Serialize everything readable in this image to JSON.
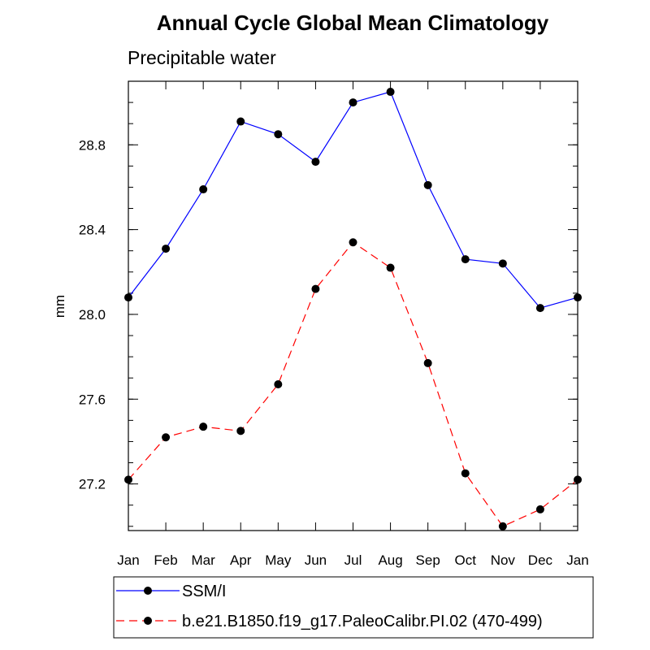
{
  "chart_data": {
    "type": "line",
    "title": "Annual Cycle Global Mean Climatology",
    "subtitle": "Precipitable water",
    "ylabel": "mm",
    "xlabel": "",
    "categories": [
      "Jan",
      "Feb",
      "Mar",
      "Apr",
      "May",
      "Jun",
      "Jul",
      "Aug",
      "Sep",
      "Oct",
      "Nov",
      "Dec",
      "Jan"
    ],
    "ylim": [
      26.98,
      29.1
    ],
    "yticks_major": [
      "27.2",
      "27.6",
      "28.0",
      "28.4",
      "28.8"
    ],
    "series": [
      {
        "name": "SSM/I",
        "color": "#0000ff",
        "dash": "solid",
        "values": [
          28.08,
          28.31,
          28.59,
          28.91,
          28.85,
          28.72,
          29.0,
          29.05,
          28.61,
          28.26,
          28.24,
          28.03,
          28.08
        ]
      },
      {
        "name": "b.e21.B1850.f19_g17.PaleoCalibr.PI.02 (470-499)",
        "color": "#ff0000",
        "dash": "dashed",
        "values": [
          27.22,
          27.42,
          27.47,
          27.45,
          27.67,
          28.12,
          28.34,
          28.22,
          27.77,
          27.25,
          27.0,
          27.08,
          27.22
        ]
      }
    ]
  }
}
